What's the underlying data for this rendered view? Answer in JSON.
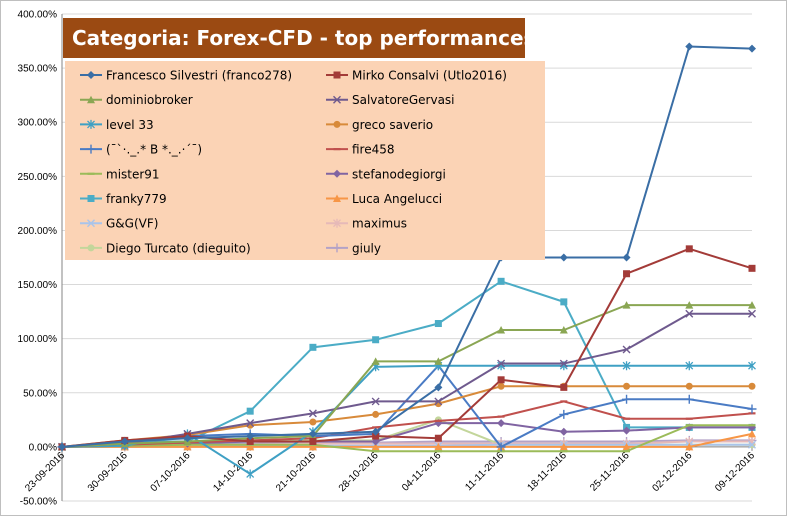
{
  "chart_data": {
    "type": "line",
    "title": "Categoria: Forex-CFD - top performances",
    "xlabel": "",
    "ylabel": "",
    "categories": [
      "23-09-2016",
      "30-09-2016",
      "07-10-2016",
      "14-10-2016",
      "21-10-2016",
      "28-10-2016",
      "04-11-2016",
      "11-11-2016",
      "18-11-2016",
      "25-11-2016",
      "02-12-2016",
      "09-12-2016"
    ],
    "y_tick_labels": [
      "-50.00%",
      "0.00%",
      "50.00%",
      "100.00%",
      "150.00%",
      "200.00%",
      "250.00%",
      "300.00%",
      "350.00%",
      "400.00%"
    ],
    "ylim": [
      -50,
      400
    ],
    "grid": true,
    "legend": "top-left, two columns",
    "colors": {
      "title_bg": "#9b4a12",
      "legend_bg": "#fbd3b5",
      "plot_bg": "#ffffff",
      "grid": "#d9d9d9"
    },
    "series": [
      {
        "name": "Francesco Silvestri (franco278)",
        "color": "#3a6ea5",
        "marker": "diamond",
        "values": [
          0,
          5,
          8,
          10,
          12,
          14,
          55,
          175,
          175,
          175,
          370,
          368
        ]
      },
      {
        "name": "Mirko Consalvi (Utlo2016)",
        "color": "#a33b38",
        "marker": "square",
        "values": [
          0,
          6,
          10,
          5,
          5,
          10,
          8,
          62,
          55,
          160,
          183,
          165
        ]
      },
      {
        "name": "dominiobroker",
        "color": "#8aa653",
        "marker": "triangle",
        "values": [
          0,
          3,
          5,
          8,
          10,
          79,
          79,
          108,
          108,
          131,
          131,
          131
        ]
      },
      {
        "name": "SalvatoreGervasi",
        "color": "#6f5a8e",
        "marker": "x",
        "values": [
          0,
          3,
          12,
          22,
          31,
          42,
          42,
          77,
          77,
          90,
          123,
          123
        ]
      },
      {
        "name": "level 33",
        "color": "#3fa0c4",
        "marker": "star",
        "values": [
          0,
          1,
          12,
          -25,
          14,
          74,
          75,
          75,
          75,
          75,
          75,
          75
        ]
      },
      {
        "name": "greco saverio",
        "color": "#d88a3a",
        "marker": "circle",
        "values": [
          0,
          6,
          11,
          20,
          23,
          30,
          40,
          56,
          56,
          56,
          56,
          56
        ]
      },
      {
        "name": "(¯`·._.* B *._.·´¯)",
        "color": "#4a7bc4",
        "marker": "plus",
        "values": [
          0,
          2,
          10,
          12,
          10,
          12,
          75,
          0,
          30,
          44,
          44,
          35
        ]
      },
      {
        "name": "fire458",
        "color": "#c0504d",
        "marker": "dash",
        "values": [
          0,
          2,
          4,
          6,
          8,
          18,
          24,
          28,
          42,
          26,
          26,
          31
        ]
      },
      {
        "name": "mister91",
        "color": "#9bbb59",
        "marker": "dash",
        "values": [
          0,
          1,
          2,
          2,
          2,
          -4,
          -4,
          -4,
          -4,
          -4,
          20,
          20
        ]
      },
      {
        "name": "stefanodegiorgi",
        "color": "#8064a2",
        "marker": "diamond",
        "values": [
          0,
          1,
          3,
          5,
          5,
          5,
          22,
          22,
          14,
          15,
          18,
          18
        ]
      },
      {
        "name": "franky779",
        "color": "#4bacc6",
        "marker": "square",
        "values": [
          0,
          5,
          5,
          33,
          92,
          99,
          114,
          153,
          134,
          18,
          18,
          18
        ]
      },
      {
        "name": "Luca Angelucci",
        "color": "#f79646",
        "marker": "triangle",
        "values": [
          0,
          0,
          0,
          0,
          0,
          0,
          0,
          0,
          0,
          0,
          0,
          12
        ]
      },
      {
        "name": "G&G(VF)",
        "color": "#a9c4eb",
        "marker": "x",
        "values": [
          0,
          0,
          0,
          1,
          1,
          1,
          1,
          2,
          2,
          2,
          2,
          2
        ]
      },
      {
        "name": "maximus",
        "color": "#e6b9b8",
        "marker": "star",
        "values": [
          0,
          0,
          1,
          2,
          3,
          3,
          3,
          3,
          3,
          3,
          5,
          5
        ]
      },
      {
        "name": "Diego Turcato (dieguito)",
        "color": "#c3d69b",
        "marker": "circle",
        "values": [
          0,
          1,
          3,
          5,
          6,
          6,
          25,
          2,
          2,
          2,
          2,
          2
        ]
      },
      {
        "name": "giuly",
        "color": "#b3a2c7",
        "marker": "plus",
        "values": [
          0,
          0,
          2,
          3,
          4,
          4,
          5,
          5,
          5,
          5,
          6,
          6
        ]
      }
    ]
  }
}
